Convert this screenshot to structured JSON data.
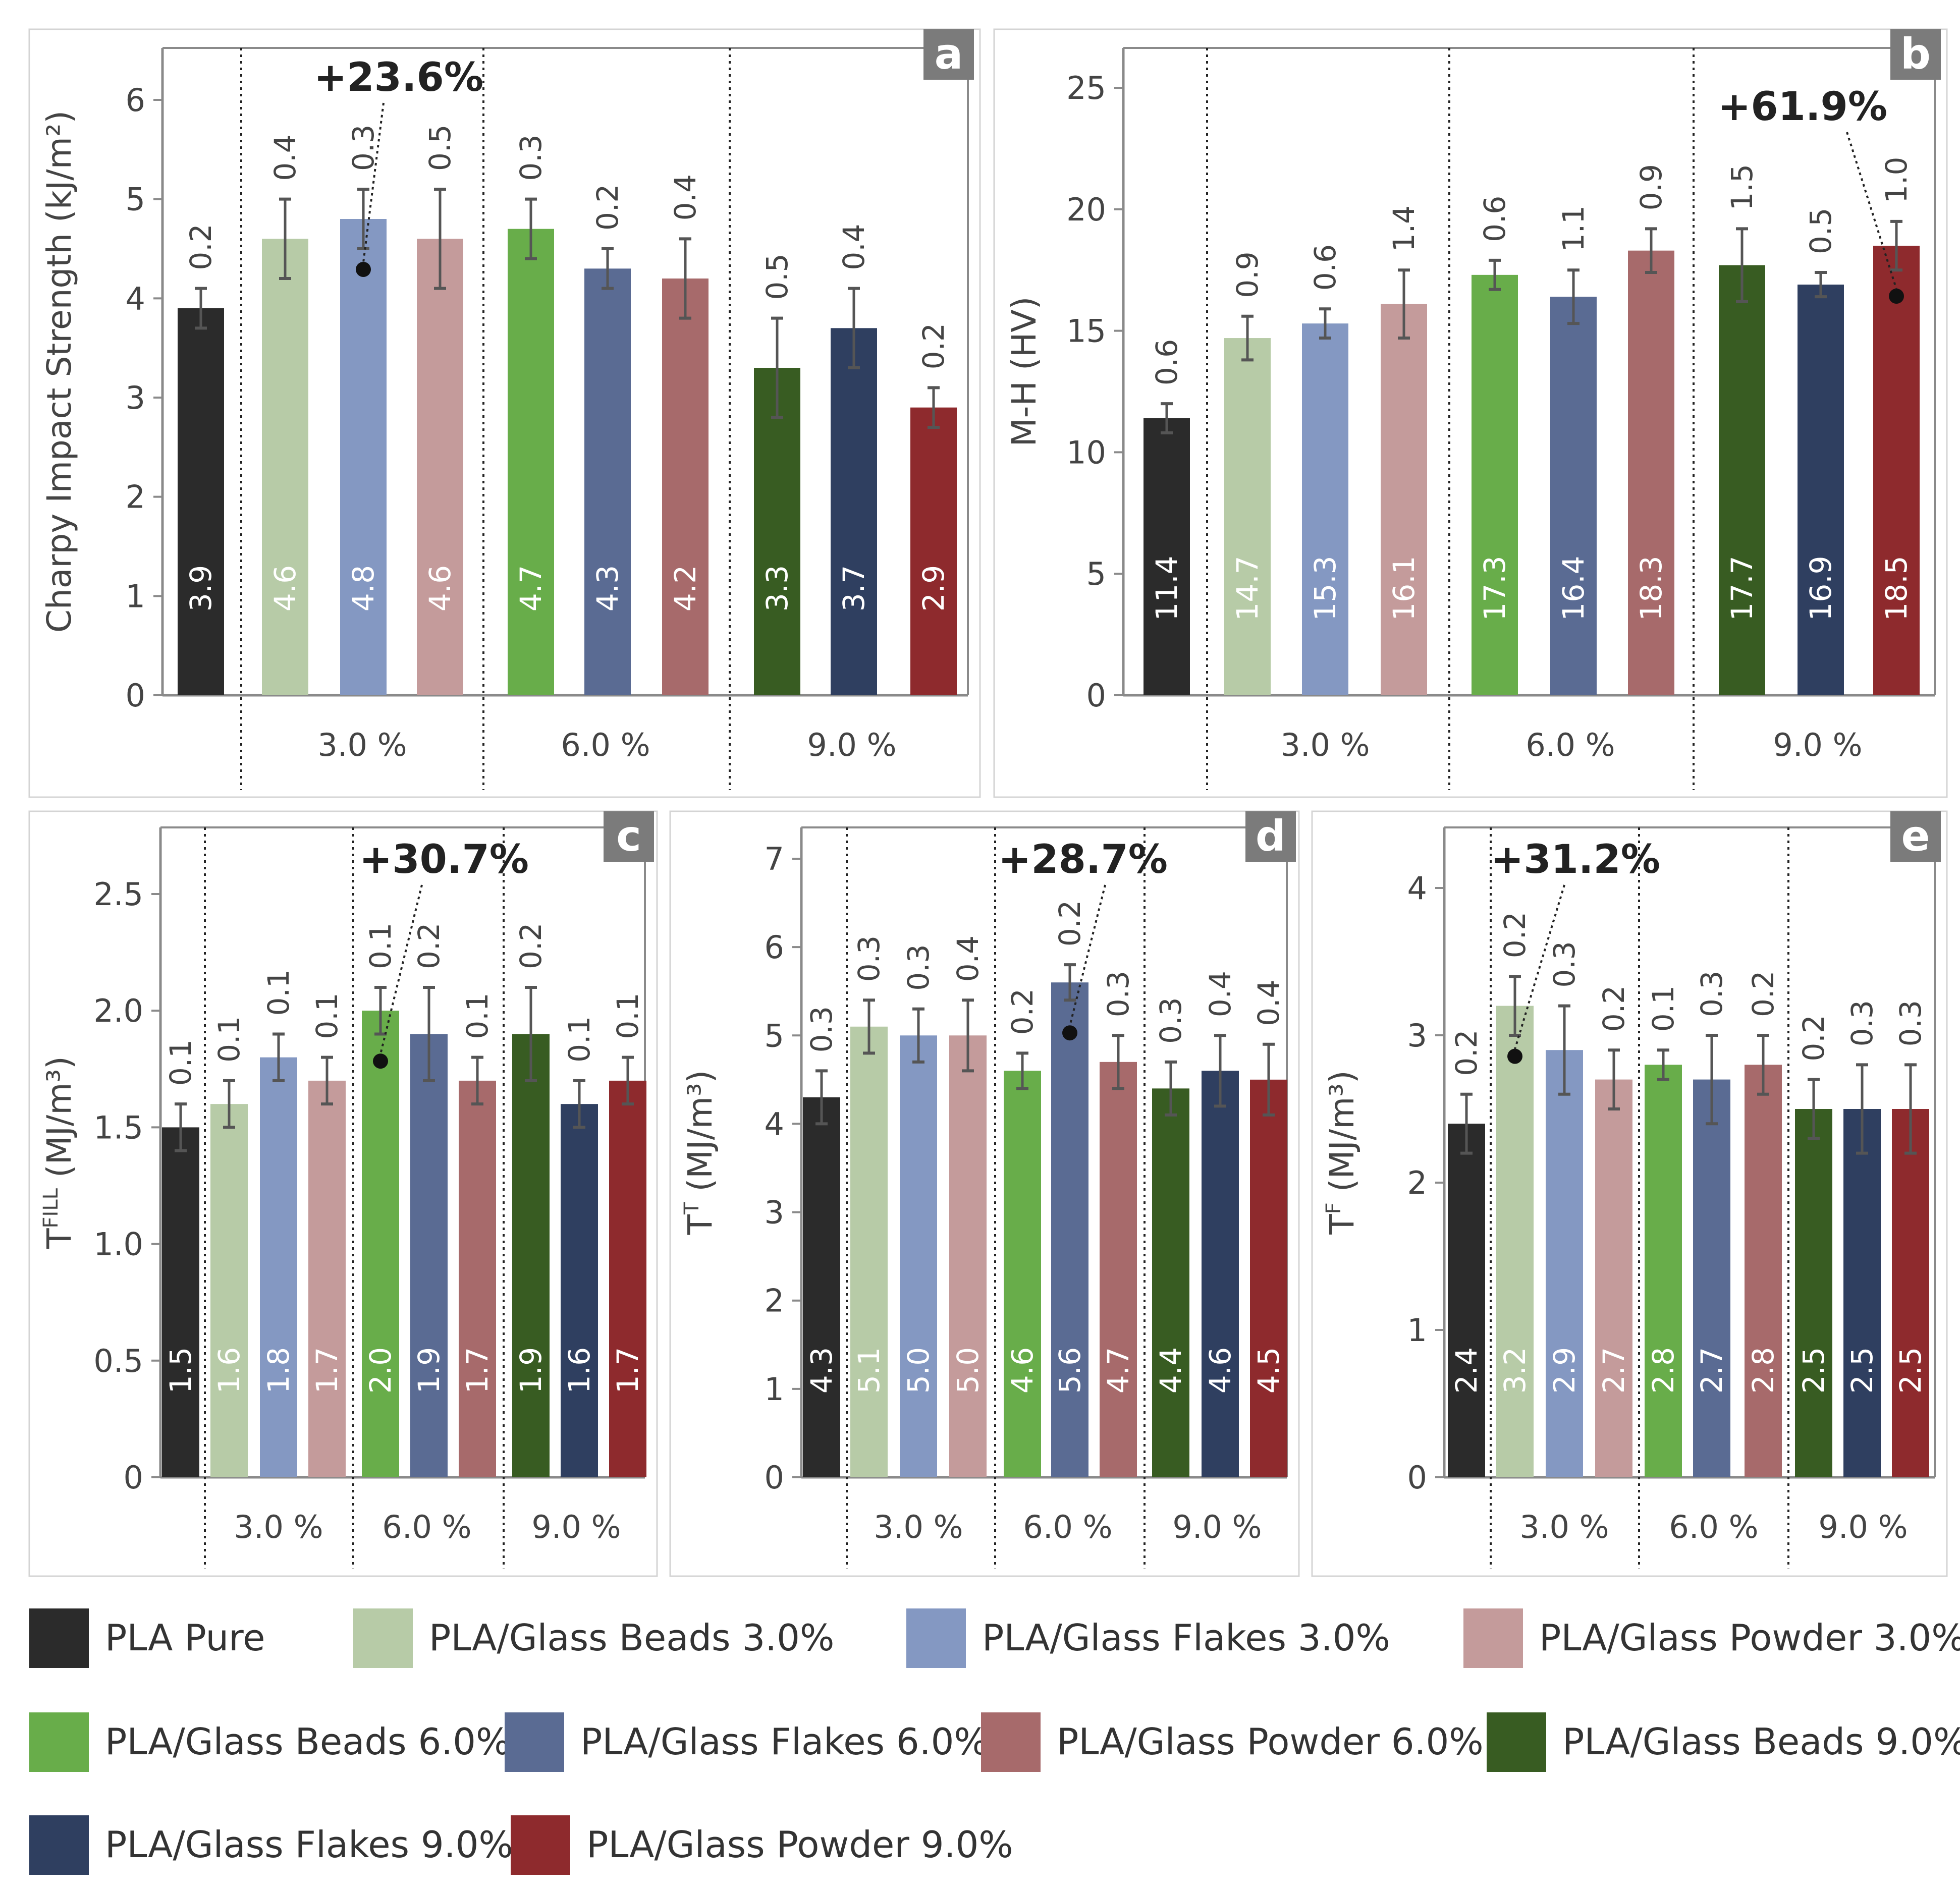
{
  "legend": [
    {
      "label": "PLA Pure",
      "color": "#2b2b2b"
    },
    {
      "label": "PLA/Glass Beads 3.0%",
      "color": "#b7cba7"
    },
    {
      "label": "PLA/Glass Flakes 3.0%",
      "color": "#8498c2"
    },
    {
      "label": "PLA/Glass Powder 3.0%",
      "color": "#c49b9b"
    },
    {
      "label": "PLA/Glass Beads 6.0%",
      "color": "#68ad4a"
    },
    {
      "label": "PLA/Glass Flakes 6.0%",
      "color": "#5a6b93"
    },
    {
      "label": "PLA/Glass Powder 6.0%",
      "color": "#a76a6b"
    },
    {
      "label": "PLA/Glass Beads 9.0%",
      "color": "#385c22"
    },
    {
      "label": "PLA/Glass Flakes 9.0%",
      "color": "#2f3f60"
    },
    {
      "label": "PLA/Glass Powder 9.0%",
      "color": "#8e2a2d"
    }
  ],
  "chart_data": [
    {
      "panel": "a",
      "type": "bar",
      "ylabel": "Charpy Impact Strength (kJ/m²)",
      "ylim": [
        0,
        6.5
      ],
      "yticks": [
        0,
        1,
        2,
        3,
        4,
        5,
        6
      ],
      "ytick_labels": [
        "0",
        "1",
        "2",
        "3",
        "4",
        "5",
        "6"
      ],
      "groups": [
        "3.0 %",
        "6.0 %",
        "9.0 %"
      ],
      "values": [
        3.9,
        4.6,
        4.8,
        4.6,
        4.7,
        4.3,
        4.2,
        3.3,
        3.7,
        2.9
      ],
      "value_labels": [
        "3.9",
        "4.6",
        "4.8",
        "4.6",
        "4.7",
        "4.3",
        "4.2",
        "3.3",
        "3.7",
        "2.9"
      ],
      "errors": [
        0.2,
        0.4,
        0.3,
        0.5,
        0.3,
        0.2,
        0.4,
        0.5,
        0.4,
        0.2
      ],
      "error_labels": [
        "0.2",
        "0.4",
        "0.3",
        "0.5",
        "0.3",
        "0.2",
        "0.4",
        "0.5",
        "0.4",
        "0.2"
      ],
      "annotation": {
        "text": "+23.6%",
        "bar": 2
      }
    },
    {
      "panel": "b",
      "type": "bar",
      "ylabel": "M-H (HV)",
      "ylim": [
        0,
        26
      ],
      "yticks": [
        0,
        5,
        10,
        15,
        20,
        25
      ],
      "ytick_labels": [
        "0",
        "5",
        "10",
        "15",
        "20",
        "25"
      ],
      "groups": [
        "3.0 %",
        "6.0 %",
        "9.0 %"
      ],
      "values": [
        11.4,
        14.7,
        15.3,
        16.1,
        17.3,
        16.4,
        18.3,
        17.7,
        16.9,
        18.5
      ],
      "value_labels": [
        "11.4",
        "14.7",
        "15.3",
        "16.1",
        "17.3",
        "16.4",
        "18.3",
        "17.7",
        "16.9",
        "18.5"
      ],
      "errors": [
        0.6,
        0.9,
        0.6,
        1.4,
        0.6,
        1.1,
        0.9,
        1.5,
        0.5,
        1.0
      ],
      "error_labels": [
        "0.6",
        "0.9",
        "0.6",
        "1.4",
        "0.6",
        "1.1",
        "0.9",
        "1.5",
        "0.5",
        "1.0"
      ],
      "annotation": {
        "text": "+61.9%",
        "bar": 9
      }
    },
    {
      "panel": "c",
      "type": "bar",
      "ylabel_main": "T",
      "ylabel_sup": "FILL",
      "ylabel_unit": " (MJ/m³)",
      "ylim": [
        0,
        2.75
      ],
      "yticks": [
        0,
        0.5,
        1.0,
        1.5,
        2.0,
        2.5
      ],
      "ytick_labels": [
        "0",
        "0.5",
        "1.0",
        "1.5",
        "2.0",
        "2.5"
      ],
      "groups": [
        "3.0 %",
        "6.0 %",
        "9.0 %"
      ],
      "values": [
        1.5,
        1.6,
        1.8,
        1.7,
        2.0,
        1.9,
        1.7,
        1.9,
        1.6,
        1.7
      ],
      "value_labels": [
        "1.5",
        "1.6",
        "1.8",
        "1.7",
        "2.0",
        "1.9",
        "1.7",
        "1.9",
        "1.6",
        "1.7"
      ],
      "errors": [
        0.1,
        0.1,
        0.1,
        0.1,
        0.1,
        0.2,
        0.1,
        0.2,
        0.1,
        0.1
      ],
      "error_labels": [
        "0.1",
        "0.1",
        "0.1",
        "0.1",
        "0.1",
        "0.2",
        "0.1",
        "0.2",
        "0.1",
        "0.1"
      ],
      "annotation": {
        "text": "+30.7%",
        "bar": 4
      }
    },
    {
      "panel": "d",
      "type": "bar",
      "ylabel_main": "T",
      "ylabel_sup": "T",
      "ylabel_unit": " (MJ/m³)",
      "ylim": [
        0,
        7.2
      ],
      "yticks": [
        0,
        1,
        2,
        3,
        4,
        5,
        6,
        7
      ],
      "ytick_labels": [
        "0",
        "1",
        "2",
        "3",
        "4",
        "5",
        "6",
        "7"
      ],
      "groups": [
        "3.0 %",
        "6.0 %",
        "9.0 %"
      ],
      "values": [
        4.3,
        5.1,
        5.0,
        5.0,
        4.6,
        5.6,
        4.7,
        4.4,
        4.6,
        4.5
      ],
      "value_labels": [
        "4.3",
        "5.1",
        "5.0",
        "5.0",
        "4.6",
        "5.6",
        "4.7",
        "4.4",
        "4.6",
        "4.5"
      ],
      "errors": [
        0.3,
        0.3,
        0.3,
        0.4,
        0.2,
        0.2,
        0.3,
        0.3,
        0.4,
        0.4
      ],
      "error_labels": [
        "0.3",
        "0.3",
        "0.3",
        "0.4",
        "0.2",
        "0.2",
        "0.3",
        "0.3",
        "0.4",
        "0.4"
      ],
      "annotation": {
        "text": "+28.7%",
        "bar": 5
      }
    },
    {
      "panel": "e",
      "type": "bar",
      "ylabel_main": "T",
      "ylabel_sup": "F",
      "ylabel_unit": " (MJ/m³)",
      "ylim": [
        0,
        4.3
      ],
      "yticks": [
        0,
        1,
        2,
        3,
        4
      ],
      "ytick_labels": [
        "0",
        "1",
        "2",
        "3",
        "4"
      ],
      "groups": [
        "3.0 %",
        "6.0 %",
        "9.0 %"
      ],
      "values": [
        2.4,
        3.2,
        2.9,
        2.7,
        2.8,
        2.7,
        2.8,
        2.5,
        2.5,
        2.5
      ],
      "value_labels": [
        "2.4",
        "3.2",
        "2.9",
        "2.7",
        "2.8",
        "2.7",
        "2.8",
        "2.5",
        "2.5",
        "2.5"
      ],
      "errors": [
        0.2,
        0.2,
        0.3,
        0.2,
        0.1,
        0.3,
        0.2,
        0.2,
        0.3,
        0.3
      ],
      "error_labels": [
        "0.2",
        "0.2",
        "0.3",
        "0.2",
        "0.1",
        "0.3",
        "0.2",
        "0.2",
        "0.3",
        "0.3"
      ],
      "annotation": {
        "text": "+31.2%",
        "bar": 1
      }
    }
  ]
}
